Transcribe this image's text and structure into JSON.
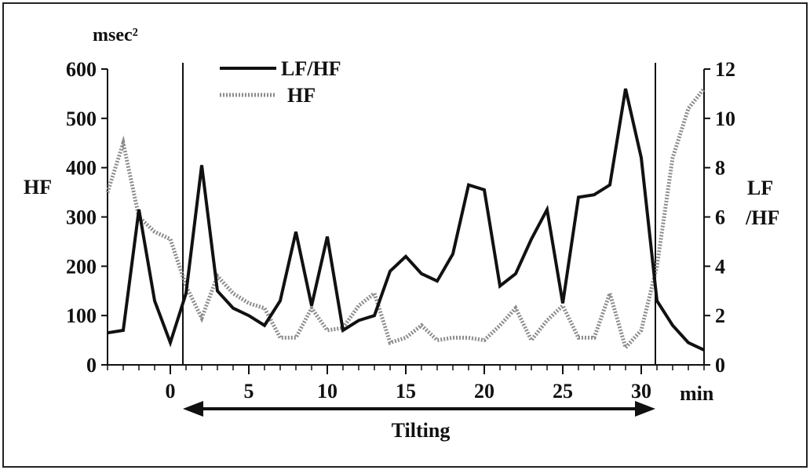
{
  "chart_data": {
    "type": "line",
    "title": "",
    "xlabel": "",
    "x_unit_label": "min",
    "left_axis": {
      "label": "HF",
      "unit": "msec²",
      "range": [
        0,
        600
      ],
      "ticks": [
        "0",
        "100",
        "200",
        "300",
        "400",
        "500",
        "600"
      ]
    },
    "right_axis": {
      "label_line1": "LF",
      "label_line2": "/HF",
      "range": [
        0,
        12
      ],
      "ticks": [
        "0",
        "2",
        "4",
        "6",
        "8",
        "10",
        "12"
      ]
    },
    "x_range": [
      -4,
      34
    ],
    "x_ticks": [
      "0",
      "5",
      "10",
      "15",
      "20",
      "25",
      "30"
    ],
    "event_lines_x": [
      0.8,
      30.9
    ],
    "tilting": {
      "label": "Tilting",
      "from": 0.8,
      "to": 30.9
    },
    "legend": [
      {
        "name": "LF/HF",
        "series": "lfhf"
      },
      {
        "name": "HF",
        "series": "hf"
      }
    ],
    "series": [
      {
        "name": "LF/HF",
        "key": "lfhf",
        "axis": "right",
        "color": "#111111",
        "x": [
          -4,
          -3,
          -2,
          -1,
          0,
          1,
          2,
          3,
          4,
          5,
          6,
          7,
          8,
          9,
          10,
          11,
          12,
          13,
          14,
          15,
          16,
          17,
          18,
          19,
          20,
          21,
          22,
          23,
          24,
          25,
          26,
          27,
          28,
          29,
          30,
          31,
          32,
          33,
          34
        ],
        "values": [
          1.3,
          1.4,
          6.3,
          2.6,
          0.9,
          2.9,
          8.1,
          3.0,
          2.3,
          2.0,
          1.6,
          2.6,
          5.4,
          2.4,
          5.2,
          1.4,
          1.8,
          2.0,
          3.8,
          4.4,
          3.7,
          3.4,
          4.5,
          7.3,
          7.1,
          3.2,
          3.7,
          5.1,
          6.3,
          2.5,
          6.8,
          6.9,
          7.3,
          11.2,
          8.4,
          2.6,
          1.6,
          0.9,
          0.6
        ]
      },
      {
        "name": "HF",
        "key": "hf",
        "axis": "left",
        "color": "#8c8c8c",
        "x": [
          -4,
          -3,
          -2,
          -1,
          0,
          1,
          2,
          3,
          4,
          5,
          6,
          7,
          8,
          9,
          10,
          11,
          12,
          13,
          14,
          15,
          16,
          17,
          18,
          19,
          20,
          21,
          22,
          23,
          24,
          25,
          26,
          27,
          28,
          29,
          30,
          31,
          32,
          33,
          34
        ],
        "values": [
          350,
          450,
          300,
          270,
          255,
          160,
          95,
          180,
          145,
          125,
          115,
          55,
          55,
          115,
          70,
          75,
          120,
          145,
          45,
          55,
          80,
          50,
          55,
          55,
          50,
          80,
          115,
          50,
          90,
          120,
          55,
          55,
          145,
          35,
          70,
          200,
          420,
          520,
          560
        ]
      }
    ]
  }
}
